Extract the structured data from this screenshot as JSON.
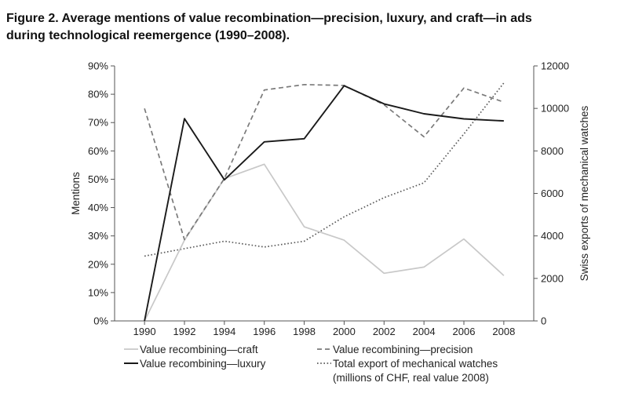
{
  "figure": {
    "title_line1": "Figure 2.  Average mentions of value recombination—precision, luxury, and craft—in ads",
    "title_line2": "during technological reemergence (1990–2008)."
  },
  "chart_data": {
    "type": "line",
    "x": [
      1990,
      1992,
      1994,
      1996,
      1998,
      2000,
      2002,
      2004,
      2006,
      2008
    ],
    "x_tick_labels": [
      "1990",
      "1992",
      "1994",
      "1996",
      "1998",
      "2000",
      "2002",
      "2004",
      "2006",
      "2008"
    ],
    "xlim": [
      1988.5,
      2009.5
    ],
    "ylabel": "Mentions",
    "y2label": "Swiss exports of mechanical watches",
    "ylim": [
      0,
      90
    ],
    "y_ticks": [
      0,
      10,
      20,
      30,
      40,
      50,
      60,
      70,
      80,
      90
    ],
    "y_tick_labels": [
      "0%",
      "10%",
      "20%",
      "30%",
      "40%",
      "50%",
      "60%",
      "70%",
      "80%",
      "90%"
    ],
    "y2lim": [
      0,
      12000
    ],
    "y2_ticks": [
      0,
      2000,
      4000,
      6000,
      8000,
      10000,
      12000
    ],
    "y2_tick_labels": [
      "0",
      "2000",
      "4000",
      "6000",
      "8000",
      "10000",
      "12000"
    ],
    "grid": false,
    "legend_position": "bottom",
    "series": [
      {
        "key": "craft",
        "name": "Value recombining—craft",
        "axis": "left",
        "color": "#c8c8c8",
        "dash": "solid",
        "values": [
          0,
          28.5,
          50.2,
          55.3,
          33.2,
          28.5,
          16.8,
          19.0,
          28.9,
          16.0
        ]
      },
      {
        "key": "luxury",
        "name": "Value recombining—luxury",
        "axis": "left",
        "color": "#1a1a1a",
        "dash": "solid",
        "values": [
          0,
          71.4,
          49.8,
          63.2,
          64.3,
          83.0,
          76.6,
          73.1,
          71.3,
          70.6
        ]
      },
      {
        "key": "precision",
        "name": "Value recombining—precision",
        "axis": "left",
        "color": "#7a7a7a",
        "dash": "dashed",
        "values": [
          75.0,
          28.7,
          50.3,
          81.5,
          83.4,
          83.1,
          76.3,
          65.0,
          82.2,
          77.2
        ]
      },
      {
        "key": "exports",
        "name": "Total export of mechanical watches",
        "name_line2": "(millions of CHF, real value 2008)",
        "axis": "right",
        "color": "#5a5a5a",
        "dash": "dotted",
        "values": [
          3050,
          3400,
          3750,
          3480,
          3750,
          4900,
          5800,
          6500,
          8800,
          11200
        ]
      }
    ]
  }
}
